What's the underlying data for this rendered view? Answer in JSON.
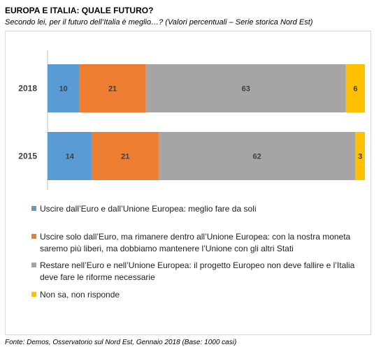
{
  "title": "EUROPA E ITALIA:  QUALE FUTURO?",
  "subtitle": "Secondo lei, per il futuro dell’Italia è meglio…? (Valori percentuali – Serie storica Nord Est)",
  "source": "Fonte: Demos, Osservatorio sul Nord Est, Gennaio  2018 (Base: 1000 casi)",
  "chart_data": {
    "type": "bar",
    "orientation": "horizontal",
    "stacked": true,
    "categories": [
      "2018",
      "2015"
    ],
    "series": [
      {
        "name": "Uscire dall’Euro e dall’Unione Europea: meglio fare da soli",
        "color": "#5b9bd5",
        "values": [
          10,
          14
        ]
      },
      {
        "name": "Uscire solo dall’Euro, ma rimanere dentro all’Unione Europea: con la nostra moneta saremo più liberi, ma dobbiamo mantenere l’Unione con gli altri Stati",
        "color": "#ed7d31",
        "values": [
          21,
          21
        ]
      },
      {
        "name": "Restare nell’Euro e nell’Unione Europea: il progetto Europeo non deve fallire e l’Italia deve fare le riforme necessarie",
        "color": "#a5a5a5",
        "values": [
          63,
          62
        ]
      },
      {
        "name": "Non sa, non risponde",
        "color": "#ffc000",
        "values": [
          6,
          3
        ]
      }
    ],
    "legend_position": "bottom",
    "grid": false
  }
}
